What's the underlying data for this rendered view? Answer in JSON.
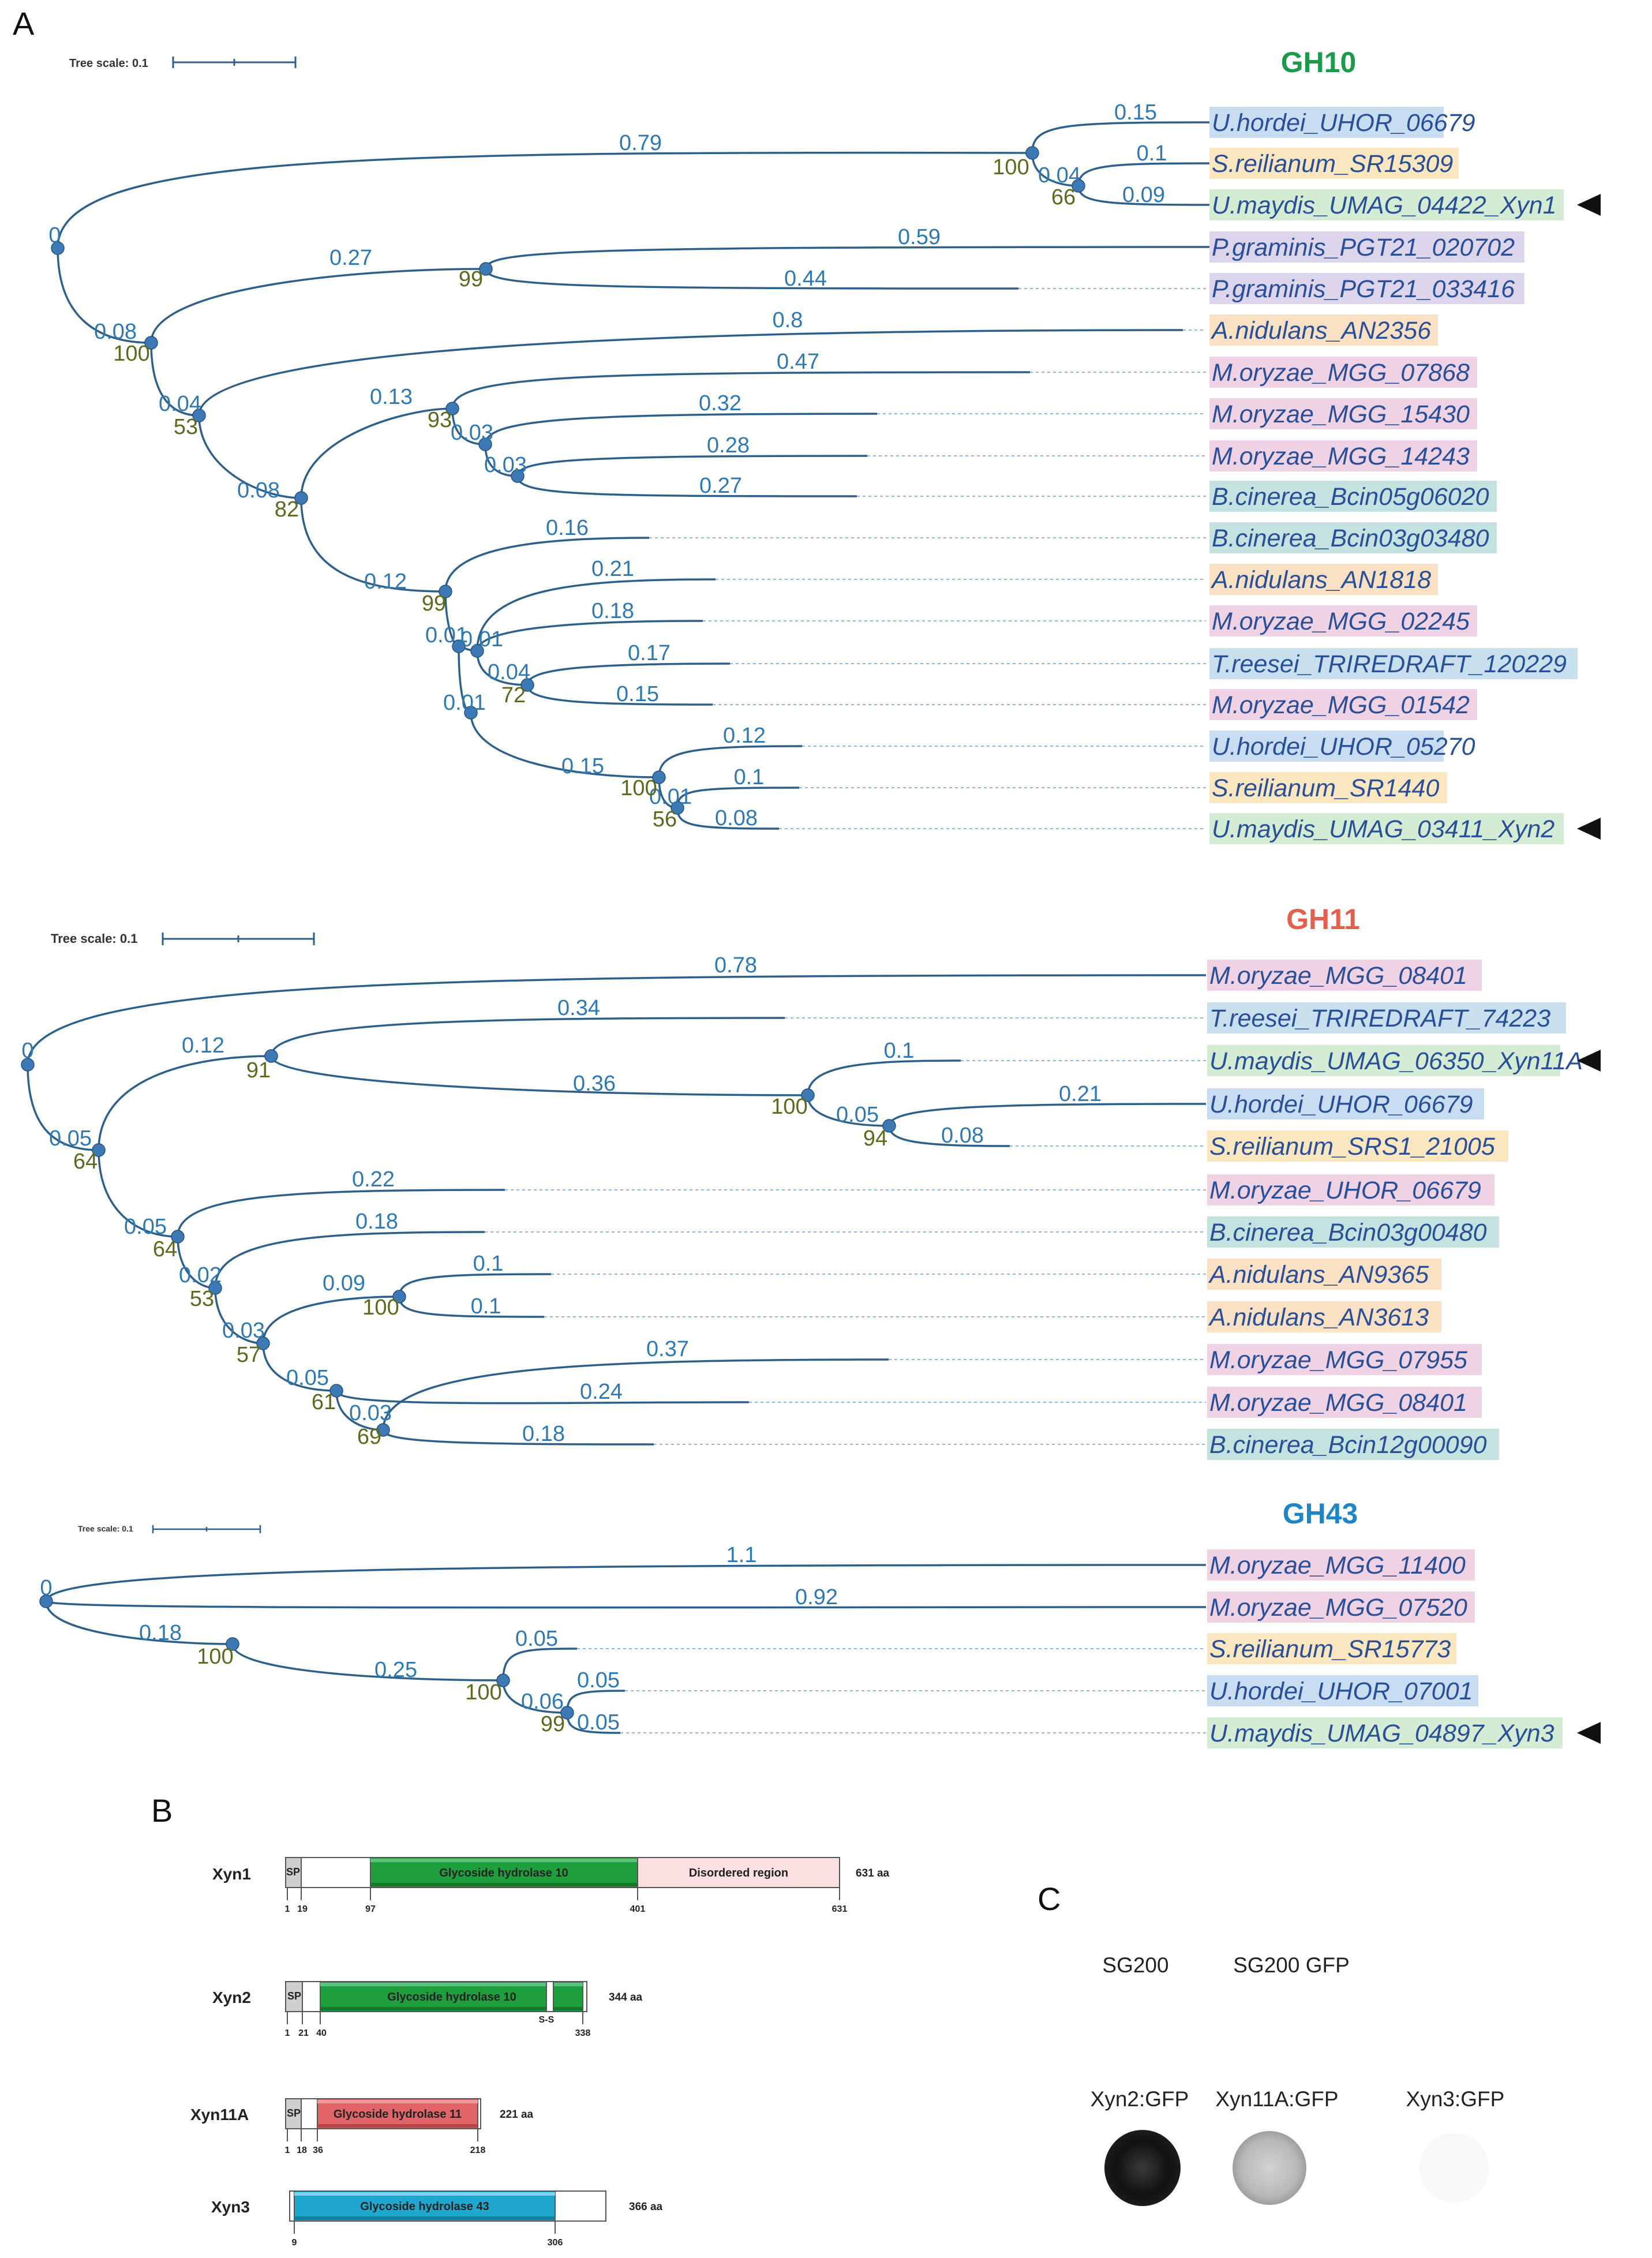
{
  "panels": [
    "A",
    "B",
    "C"
  ],
  "colors": {
    "branch": "#2d5f8b",
    "node": "#3d79b5",
    "branch_label": "#2f79b3",
    "support_label": "#5b6a1e",
    "leaf_text": "#2a4f99",
    "species": {
      "U.hordei": "#c9ddf2",
      "S.reilianum": "#fbe7bf",
      "U.maydis": "#d4ecd3",
      "P.graminis": "#dcd5ec",
      "A.nidulans": "#fbe1c4",
      "M.oryzae": "#efd3e4",
      "B.cinerea": "#c4e2e0",
      "T.reesei": "#c8dfee"
    }
  },
  "trees": [
    {
      "family": "GH10",
      "family_color": "#1c9a4b",
      "scale_label": "Tree scale: 0.1",
      "leaves": [
        {
          "label": "U.hordei_UHOR_06679",
          "species": "U.hordei",
          "marked": false
        },
        {
          "label": "S.reilianum_SR15309",
          "species": "S.reilianum",
          "marked": false
        },
        {
          "label": "U.maydis_UMAG_04422_Xyn1",
          "species": "U.maydis",
          "marked": true
        },
        {
          "label": "P.graminis_PGT21_020702",
          "species": "P.graminis",
          "marked": false
        },
        {
          "label": "P.graminis_PGT21_033416",
          "species": "P.graminis",
          "marked": false
        },
        {
          "label": "A.nidulans_AN2356",
          "species": "A.nidulans",
          "marked": false
        },
        {
          "label": "M.oryzae_MGG_07868",
          "species": "M.oryzae",
          "marked": false
        },
        {
          "label": "M.oryzae_MGG_15430",
          "species": "M.oryzae",
          "marked": false
        },
        {
          "label": "M.oryzae_MGG_14243",
          "species": "M.oryzae",
          "marked": false
        },
        {
          "label": "B.cinerea_Bcin05g06020",
          "species": "B.cinerea",
          "marked": false
        },
        {
          "label": "B.cinerea_Bcin03g03480",
          "species": "B.cinerea",
          "marked": false
        },
        {
          "label": "A.nidulans_AN1818",
          "species": "A.nidulans",
          "marked": false
        },
        {
          "label": "M.oryzae_MGG_02245",
          "species": "M.oryzae",
          "marked": false
        },
        {
          "label": "T.reesei_TRIREDRAFT_120229",
          "species": "T.reesei",
          "marked": false
        },
        {
          "label": "M.oryzae_MGG_01542",
          "species": "M.oryzae",
          "marked": false
        },
        {
          "label": "U.hordei_UHOR_05270",
          "species": "U.hordei",
          "marked": false
        },
        {
          "label": "S.reilianum_SR1440",
          "species": "S.reilianum",
          "marked": false
        },
        {
          "label": "U.maydis_UMAG_03411_Xyn2",
          "species": "U.maydis",
          "marked": true
        }
      ],
      "branch_lengths": [
        "0.15",
        "0.1",
        "0.09",
        "0.04",
        "0.79",
        "0",
        "0.59",
        "0.44",
        "0.27",
        "0.08",
        "0.8",
        "0.04",
        "0.47",
        "0.32",
        "0.28",
        "0.27",
        "0.03",
        "0.03",
        "0.13",
        "0.08",
        "0.16",
        "0.21",
        "0.18",
        "0.17",
        "0.15",
        "0.04",
        "0.01",
        "0.01",
        "0.12",
        "0.1",
        "0.08",
        "0.01",
        "0.15",
        "0.01",
        "0.12"
      ],
      "support_values": [
        "100",
        "66",
        "99",
        "100",
        "53",
        "93",
        "82",
        "99",
        "72",
        "100",
        "56"
      ]
    },
    {
      "family": "GH11",
      "family_color": "#e2604f",
      "scale_label": "Tree scale: 0.1",
      "leaves": [
        {
          "label": "M.oryzae_MGG_08401",
          "species": "M.oryzae",
          "marked": false
        },
        {
          "label": "T.reesei_TRIREDRAFT_74223",
          "species": "T.reesei",
          "marked": false
        },
        {
          "label": "U.maydis_UMAG_06350_Xyn11A",
          "species": "U.maydis",
          "marked": true
        },
        {
          "label": "U.hordei_UHOR_06679",
          "species": "U.hordei",
          "marked": false
        },
        {
          "label": "S.reilianum_SRS1_21005",
          "species": "S.reilianum",
          "marked": false
        },
        {
          "label": "M.oryzae_UHOR_06679",
          "species": "M.oryzae",
          "marked": false
        },
        {
          "label": "B.cinerea_Bcin03g00480",
          "species": "B.cinerea",
          "marked": false
        },
        {
          "label": "A.nidulans_AN9365",
          "species": "A.nidulans",
          "marked": false
        },
        {
          "label": "A.nidulans_AN3613",
          "species": "A.nidulans",
          "marked": false
        },
        {
          "label": "M.oryzae_MGG_07955",
          "species": "M.oryzae",
          "marked": false
        },
        {
          "label": "M.oryzae_MGG_08401",
          "species": "M.oryzae",
          "marked": false
        },
        {
          "label": "B.cinerea_Bcin12g00090",
          "species": "B.cinerea",
          "marked": false
        }
      ],
      "branch_lengths": [
        "0.78",
        "0",
        "0.34",
        "0.12",
        "0.1",
        "0.36",
        "0.21",
        "0.08",
        "0.05",
        "0.05",
        "0.22",
        "0.05",
        "0.18",
        "0.02",
        "0.09",
        "0.1",
        "0.1",
        "0.03",
        "0.37",
        "0.24",
        "0.18",
        "0.03",
        "0.05"
      ],
      "support_values": [
        "91",
        "100",
        "94",
        "64",
        "64",
        "53",
        "100",
        "57",
        "61",
        "69"
      ]
    },
    {
      "family": "GH43",
      "family_color": "#1e86c6",
      "scale_label": "Tree scale: 0.1",
      "leaves": [
        {
          "label": "M.oryzae_MGG_11400",
          "species": "M.oryzae",
          "marked": false
        },
        {
          "label": "M.oryzae_MGG_07520",
          "species": "M.oryzae",
          "marked": false
        },
        {
          "label": "S.reilianum_SR15773",
          "species": "S.reilianum",
          "marked": false
        },
        {
          "label": "U.hordei_UHOR_07001",
          "species": "U.hordei",
          "marked": false
        },
        {
          "label": "U.maydis_UMAG_04897_Xyn3",
          "species": "U.maydis",
          "marked": true
        }
      ],
      "branch_lengths": [
        "1.1",
        "0",
        "0.92",
        "0.18",
        "0.05",
        "0.25",
        "0.05",
        "0.06",
        "0.05"
      ],
      "support_values": [
        "100",
        "100",
        "99"
      ]
    }
  ],
  "proteins": [
    {
      "name": "Xyn1",
      "length_label": "631 aa",
      "sp_label": "SP",
      "domains": [
        {
          "label": "Glycoside hydrolase 10",
          "color": "#1f9e3e"
        },
        {
          "label": "Disordered region",
          "color": "#fbe0e2"
        }
      ],
      "positions": [
        "1",
        "19",
        "97",
        "401",
        "631"
      ]
    },
    {
      "name": "Xyn2",
      "length_label": "344 aa",
      "sp_label": "SP",
      "disulfide_label": "S-S",
      "domains": [
        {
          "label": "Glycoside hydrolase 10",
          "color": "#1f9e3e"
        }
      ],
      "positions": [
        "1",
        "21",
        "40",
        "338"
      ]
    },
    {
      "name": "Xyn11A",
      "length_label": "221 aa",
      "sp_label": "SP",
      "domains": [
        {
          "label": "Glycoside hydrolase 11",
          "color": "#e06468"
        }
      ],
      "positions": [
        "1",
        "18",
        "36",
        "218"
      ]
    },
    {
      "name": "Xyn3",
      "length_label": "366 aa",
      "domains": [
        {
          "label": "Glycoside hydrolase 43",
          "color": "#1fa7cf"
        }
      ],
      "positions": [
        "9",
        "306"
      ]
    }
  ],
  "assay": {
    "controls": [
      "SG200",
      "SG200 GFP"
    ],
    "samples": [
      {
        "label": "Xyn2:GFP",
        "signal": 0.95
      },
      {
        "label": "Xyn11A:GFP",
        "signal": 0.35
      },
      {
        "label": "Xyn3:GFP",
        "signal": 0.02
      }
    ]
  }
}
